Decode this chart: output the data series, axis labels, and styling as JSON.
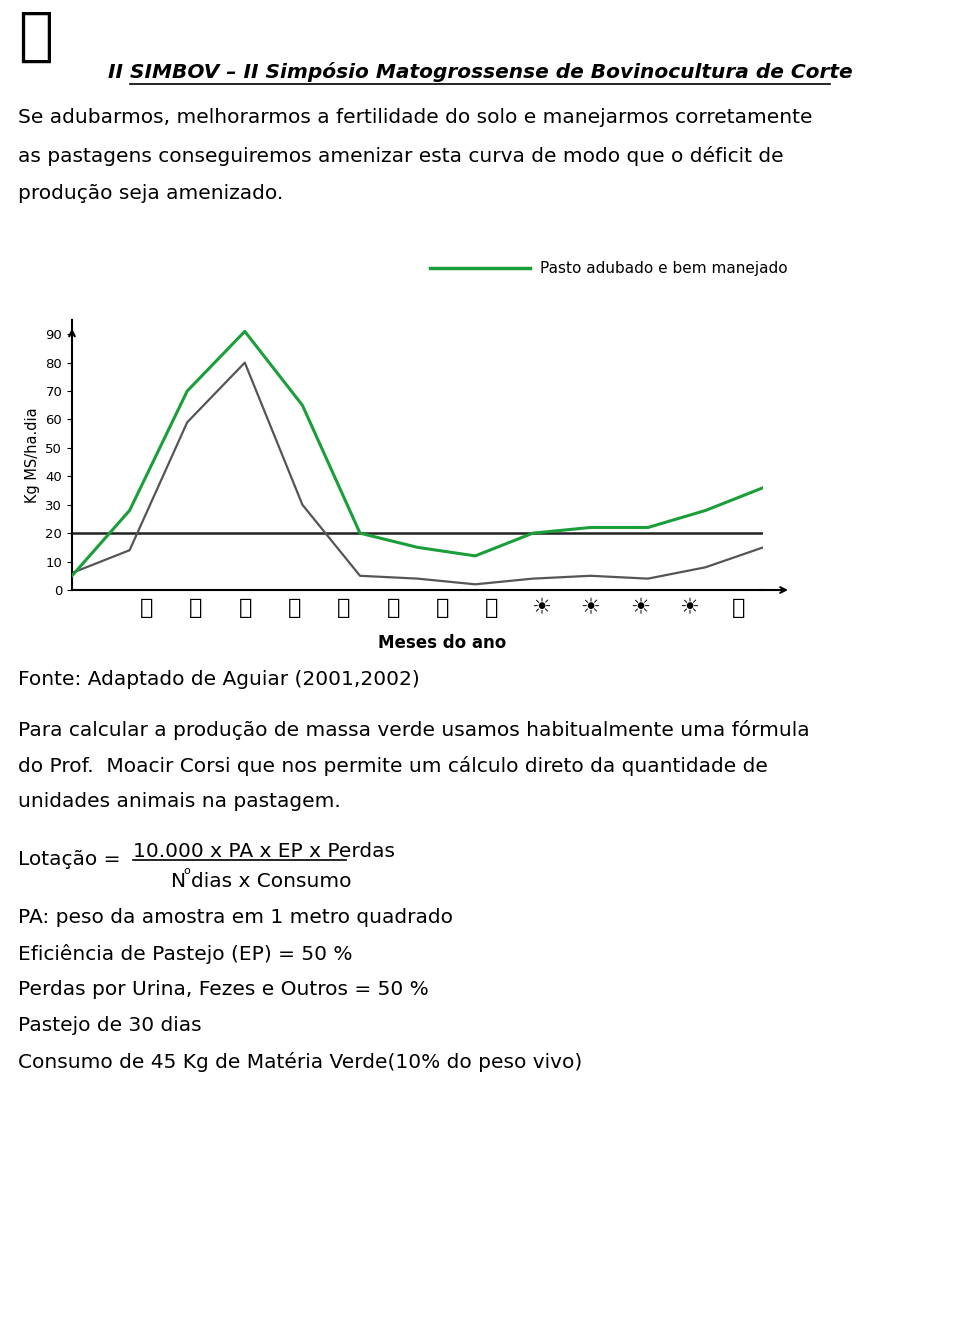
{
  "title_header": "II SIMBOV – II Simpósio Matogrossense de Bovinocultura de Corte",
  "para1_lines": [
    "Se adubarmos, melhorarmos a fertilidade do solo e manejarmos corretamente",
    "as pastagens conseguiremos amenizar esta curva de modo que o déficit de",
    "produção seja amenizado."
  ],
  "legend_label": "Pasto adubado e bem manejado",
  "ylabel": "Kg MS/ha.dia",
  "xlabel": "Meses do ano",
  "yticks": [
    0,
    10,
    20,
    30,
    40,
    50,
    60,
    70,
    80,
    90
  ],
  "green_line_x": [
    0,
    1,
    2,
    3,
    4,
    5,
    6,
    7,
    8,
    9,
    10,
    11,
    12
  ],
  "green_line_y": [
    5,
    28,
    70,
    91,
    65,
    20,
    15,
    12,
    20,
    22,
    22,
    28,
    36
  ],
  "gray_line_x": [
    0,
    1,
    2,
    3,
    4,
    5,
    6,
    7,
    8,
    9,
    10,
    11,
    12
  ],
  "gray_line_y": [
    6,
    14,
    59,
    80,
    30,
    5,
    4,
    2,
    4,
    5,
    4,
    8,
    15
  ],
  "hline_y": 20,
  "green_color": "#1a9e3a",
  "gray_color": "#555555",
  "hline_color": "#222222",
  "fonte_text": "Fonte: Adaptado de Aguiar (2001,2002)",
  "para2_lines": [
    "Para calcular a produção de massa verde usamos habitualmente uma fórmula",
    "do Prof.  Moacir Corsi que nos permite um cálculo direto da quantidade de",
    "unidades animais na pastagem."
  ],
  "formula_prefix": "Lotação = ",
  "formula_numerator": "10.000 x PA x EP x Perdas",
  "formula_denominator": "dias x Consumo",
  "bullets": [
    "PA: peso da amostra em 1 metro quadrado",
    "Eficiência de Pastejo (EP) = 50 %",
    "Perdas por Urina, Fezes e Outros = 50 %",
    "Pastejo de 30 dias",
    "Consumo de 45 Kg de Matéria Verde(10% do peso vivo)"
  ],
  "bg_color": "#ffffff",
  "text_color": "#000000",
  "body_fs": 14.5,
  "header_fs": 14.5,
  "small_fs": 11
}
